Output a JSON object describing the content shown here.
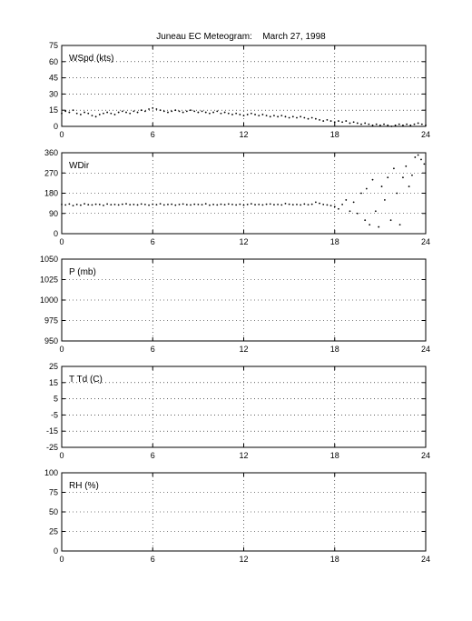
{
  "figure": {
    "title": "Juneau EC Meteogram:",
    "date": "March 27, 1998"
  },
  "chart_data": [
    {
      "type": "scatter",
      "label": "WSpd (kts)",
      "xlim": [
        0,
        24
      ],
      "xticks": [
        0,
        6,
        12,
        18,
        24
      ],
      "ylim": [
        0,
        75
      ],
      "yticks": [
        0,
        15,
        30,
        45,
        60,
        75
      ],
      "grid": true,
      "series": [
        {
          "color": "#000000",
          "x": [
            0,
            0.25,
            0.5,
            0.75,
            1,
            1.25,
            1.5,
            1.75,
            2,
            2.25,
            2.5,
            2.75,
            3,
            3.25,
            3.5,
            3.75,
            4,
            4.25,
            4.5,
            4.75,
            5,
            5.25,
            5.5,
            5.75,
            6,
            6.25,
            6.5,
            6.75,
            7,
            7.25,
            7.5,
            7.75,
            8,
            8.25,
            8.5,
            8.75,
            9,
            9.25,
            9.5,
            9.75,
            10,
            10.25,
            10.5,
            10.75,
            11,
            11.25,
            11.5,
            11.75,
            12,
            12.25,
            12.5,
            12.75,
            13,
            13.25,
            13.5,
            13.75,
            14,
            14.25,
            14.5,
            14.75,
            15,
            15.25,
            15.5,
            15.75,
            16,
            16.25,
            16.5,
            16.75,
            17,
            17.25,
            17.5,
            17.75,
            18,
            18.25,
            18.5,
            18.75,
            19,
            19.25,
            19.5,
            19.75,
            20,
            20.25,
            20.5,
            20.75,
            21,
            21.25,
            21.5,
            21.75,
            22,
            22.25,
            22.5,
            22.75,
            23,
            23.25,
            23.5,
            23.75,
            24
          ],
          "values": [
            12,
            14,
            13,
            15,
            12,
            11,
            13,
            12,
            10,
            9,
            11,
            12,
            13,
            12,
            11,
            13,
            14,
            13,
            12,
            14,
            13,
            15,
            14,
            16,
            17,
            16,
            15,
            14,
            13,
            14,
            15,
            14,
            13,
            14,
            15,
            14,
            13,
            14,
            13,
            12,
            13,
            14,
            12,
            13,
            12,
            11,
            12,
            11,
            10,
            11,
            12,
            11,
            10,
            11,
            10,
            9,
            10,
            9,
            10,
            9,
            8,
            9,
            8,
            9,
            8,
            7,
            8,
            7,
            6,
            5,
            6,
            5,
            4,
            5,
            4,
            5,
            3,
            4,
            3,
            2,
            3,
            2,
            1,
            2,
            1,
            2,
            1,
            0,
            1,
            2,
            1,
            2,
            1,
            2,
            3,
            2,
            1
          ]
        }
      ]
    },
    {
      "type": "scatter",
      "label": "WDir",
      "xlim": [
        0,
        24
      ],
      "xticks": [
        0,
        6,
        12,
        18,
        24
      ],
      "ylim": [
        0,
        360
      ],
      "yticks": [
        0,
        90,
        180,
        270,
        360
      ],
      "grid": true,
      "series": [
        {
          "color": "#000000",
          "x": [
            0,
            0.25,
            0.5,
            0.75,
            1,
            1.25,
            1.5,
            1.75,
            2,
            2.25,
            2.5,
            2.75,
            3,
            3.25,
            3.5,
            3.75,
            4,
            4.25,
            4.5,
            4.75,
            5,
            5.25,
            5.5,
            5.75,
            6,
            6.25,
            6.5,
            6.75,
            7,
            7.25,
            7.5,
            7.75,
            8,
            8.25,
            8.5,
            8.75,
            9,
            9.25,
            9.5,
            9.75,
            10,
            10.25,
            10.5,
            10.75,
            11,
            11.25,
            11.5,
            11.75,
            12,
            12.25,
            12.5,
            12.75,
            13,
            13.25,
            13.5,
            13.75,
            14,
            14.25,
            14.5,
            14.75,
            15,
            15.25,
            15.5,
            15.75,
            16,
            16.25,
            16.5,
            16.75,
            17,
            17.25,
            17.5,
            17.75,
            18,
            18.25,
            18.5,
            18.75,
            19,
            19.25,
            19.5,
            19.75,
            20,
            20.1,
            20.3,
            20.5,
            20.7,
            20.9,
            21.1,
            21.3,
            21.5,
            21.7,
            21.9,
            22.1,
            22.3,
            22.5,
            22.7,
            22.9,
            23.1,
            23.3,
            23.5,
            23.7,
            23.9
          ],
          "values": [
            130,
            128,
            132,
            125,
            130,
            127,
            133,
            129,
            128,
            131,
            130,
            126,
            132,
            129,
            130,
            128,
            131,
            133,
            129,
            130,
            128,
            132,
            130,
            127,
            131,
            129,
            133,
            128,
            130,
            131,
            127,
            130,
            132,
            129,
            128,
            131,
            130,
            129,
            133,
            127,
            130,
            128,
            131,
            129,
            132,
            130,
            128,
            131,
            127,
            130,
            133,
            129,
            130,
            128,
            131,
            132,
            129,
            130,
            128,
            134,
            131,
            129,
            130,
            128,
            132,
            129,
            131,
            140,
            135,
            130,
            128,
            125,
            120,
            110,
            130,
            150,
            100,
            140,
            90,
            180,
            60,
            200,
            40,
            240,
            100,
            30,
            210,
            150,
            250,
            60,
            290,
            180,
            40,
            250,
            300,
            210,
            260,
            340,
            350,
            330,
            310
          ]
        }
      ]
    },
    {
      "type": "scatter",
      "label": "P (mb)",
      "xlim": [
        0,
        24
      ],
      "xticks": [
        0,
        6,
        12,
        18,
        24
      ],
      "ylim": [
        950,
        1050
      ],
      "yticks": [
        950,
        975,
        1000,
        1025,
        1050
      ],
      "grid": true,
      "series": []
    },
    {
      "type": "scatter",
      "label": "T Td (C)",
      "xlim": [
        0,
        24
      ],
      "xticks": [
        0,
        6,
        12,
        18,
        24
      ],
      "ylim": [
        -25,
        25
      ],
      "yticks": [
        -25,
        -15,
        -5,
        5,
        15,
        25
      ],
      "grid": true,
      "series": []
    },
    {
      "type": "scatter",
      "label": "RH (%)",
      "xlim": [
        0,
        24
      ],
      "xticks": [
        0,
        6,
        12,
        18,
        24
      ],
      "ylim": [
        0,
        100
      ],
      "yticks": [
        0,
        25,
        50,
        75,
        100
      ],
      "grid": true,
      "series": []
    }
  ]
}
